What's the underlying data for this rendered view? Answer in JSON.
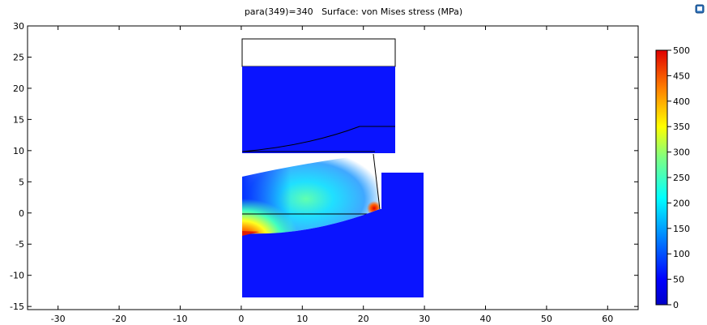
{
  "plot": {
    "title": "para(349)=340   Surface: von Mises stress (MPa)",
    "x_axis": {
      "range": [
        -35,
        65
      ],
      "ticks": [
        "-30",
        "-20",
        "-10",
        "0",
        "10",
        "20",
        "30",
        "40",
        "50",
        "60"
      ]
    },
    "y_axis": {
      "range": [
        -15.5,
        30
      ],
      "ticks": [
        "30",
        "25",
        "20",
        "15",
        "10",
        "5",
        "0",
        "-5",
        "-10",
        "-15"
      ]
    },
    "grid": false,
    "surface": {
      "quantity": "von Mises stress",
      "unit": "MPa",
      "upper_die": {
        "white_region": {
          "x": [
            0,
            24.5
          ],
          "y": [
            23.5,
            28
          ]
        },
        "stressed_region": {
          "x": [
            0,
            24.5
          ],
          "y": [
            9.5,
            23.5
          ]
        }
      },
      "workpiece": {
        "x": [
          0,
          22
        ],
        "y": [
          -3.3,
          9.6
        ]
      },
      "lower_die": {
        "x": [
          0,
          29
        ],
        "y": [
          -13.3,
          6.5
        ]
      }
    },
    "colorbar": {
      "ticks": [
        "500",
        "450",
        "400",
        "350",
        "300",
        "250",
        "200",
        "150",
        "100",
        "50",
        "0"
      ],
      "range": [
        0,
        500
      ],
      "colors": [
        "#0000ff",
        "#00ffff",
        "#ffff00",
        "#ff0000"
      ]
    }
  },
  "icons": {
    "corner": "image-export-icon"
  }
}
